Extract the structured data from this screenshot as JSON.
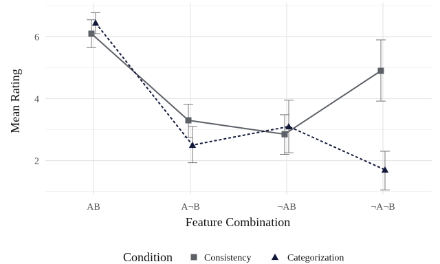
{
  "chart_data": {
    "type": "line",
    "title": "",
    "xlabel": "Feature Combination",
    "ylabel": "Mean Rating",
    "categories": [
      "AB",
      "A¬B",
      "¬AB",
      "¬A¬B"
    ],
    "ylim": [
      0.9,
      7.1
    ],
    "yticks": [
      2,
      4,
      6
    ],
    "grid": true,
    "legend": {
      "title": "Condition",
      "placement": "bottom"
    },
    "series": [
      {
        "name": "Consistency",
        "values": [
          6.1,
          3.3,
          2.85,
          4.9
        ],
        "error_low": [
          5.65,
          2.75,
          2.2,
          3.92
        ],
        "error_high": [
          6.55,
          3.82,
          3.48,
          5.9
        ],
        "marker": "square",
        "line": "solid",
        "color": "#5d6167"
      },
      {
        "name": "Categorization",
        "values": [
          6.45,
          2.5,
          3.1,
          1.7
        ],
        "error_low": [
          6.1,
          1.93,
          2.25,
          1.05
        ],
        "error_high": [
          6.78,
          3.1,
          3.95,
          2.3
        ],
        "marker": "triangle",
        "line": "dashed",
        "color": "#12183a"
      }
    ]
  }
}
